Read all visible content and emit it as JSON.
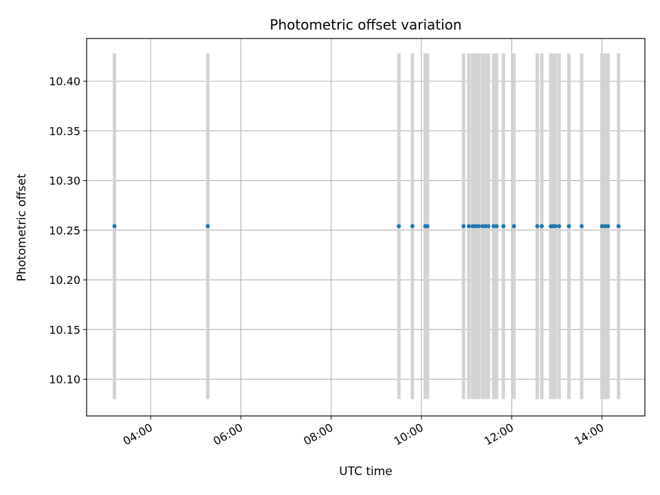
{
  "chart_data": {
    "type": "scatter",
    "title": "Photometric offset variation",
    "xlabel": "UTC time",
    "ylabel": "Photometric offset",
    "xlim": [
      "02:35",
      "14:57"
    ],
    "ylim": [
      10.063,
      10.443
    ],
    "x_ticks": [
      "04:00",
      "06:00",
      "08:00",
      "10:00",
      "12:00",
      "14:00"
    ],
    "y_ticks": [
      "10.10",
      "10.15",
      "10.20",
      "10.25",
      "10.30",
      "10.35",
      "10.40"
    ],
    "grid": true,
    "series": [
      {
        "x": [
          "03:12",
          "05:16",
          "09:30",
          "09:48",
          "10:05",
          "10:08",
          "10:56",
          "11:03",
          "11:08",
          "11:12",
          "11:16",
          "11:21",
          "11:25",
          "11:29",
          "11:36",
          "11:40",
          "11:49",
          "12:03",
          "12:34",
          "12:40",
          "12:52",
          "12:55",
          "12:58",
          "13:03",
          "13:16",
          "13:33",
          "14:00",
          "14:04",
          "14:08",
          "14:22"
        ],
        "y": [
          10.254,
          10.254,
          10.254,
          10.254,
          10.254,
          10.254,
          10.254,
          10.254,
          10.254,
          10.254,
          10.254,
          10.254,
          10.254,
          10.254,
          10.254,
          10.254,
          10.254,
          10.254,
          10.254,
          10.254,
          10.254,
          10.254,
          10.254,
          10.254,
          10.254,
          10.254,
          10.254,
          10.254,
          10.254,
          10.254
        ],
        "y_err": [
          0.174,
          0.174,
          0.174,
          0.174,
          0.174,
          0.174,
          0.174,
          0.174,
          0.174,
          0.174,
          0.174,
          0.174,
          0.174,
          0.174,
          0.174,
          0.174,
          0.174,
          0.174,
          0.174,
          0.174,
          0.174,
          0.174,
          0.174,
          0.174,
          0.174,
          0.174,
          0.174,
          0.174,
          0.174,
          0.174
        ]
      }
    ]
  },
  "colors": {
    "marker": "#1f77b4",
    "errorbar": "#d3d3d3",
    "grid": "#b0b0b0",
    "axes": "#000000"
  }
}
